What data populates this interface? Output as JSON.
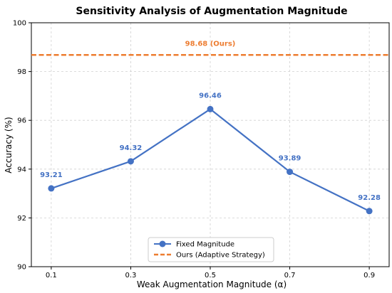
{
  "chart_data": {
    "type": "line",
    "title": "Sensitivity Analysis of Augmentation Magnitude",
    "xlabel": "Weak Augmentation Magnitude (α)",
    "ylabel": "Accuracy (%)",
    "categories": [
      "0.1",
      "0.3",
      "0.5",
      "0.7",
      "0.9"
    ],
    "y_ticks": [
      "90",
      "92",
      "94",
      "96",
      "98",
      "100"
    ],
    "ylim": [
      90,
      100
    ],
    "grid": true,
    "legend_position": "bottom-center",
    "series": [
      {
        "name": "Fixed Magnitude",
        "x": [
          0.1,
          0.3,
          0.5,
          0.7,
          0.9
        ],
        "values": [
          93.21,
          94.32,
          96.46,
          93.89,
          92.28
        ],
        "labels": [
          "93.21",
          "94.32",
          "96.46",
          "93.89",
          "92.28"
        ],
        "color": "#4472c4"
      }
    ],
    "reference_line": {
      "name": "Ours (Adaptive Strategy)",
      "value": 98.68,
      "label": "98.68 (Ours)",
      "color": "#ed7d31"
    }
  }
}
